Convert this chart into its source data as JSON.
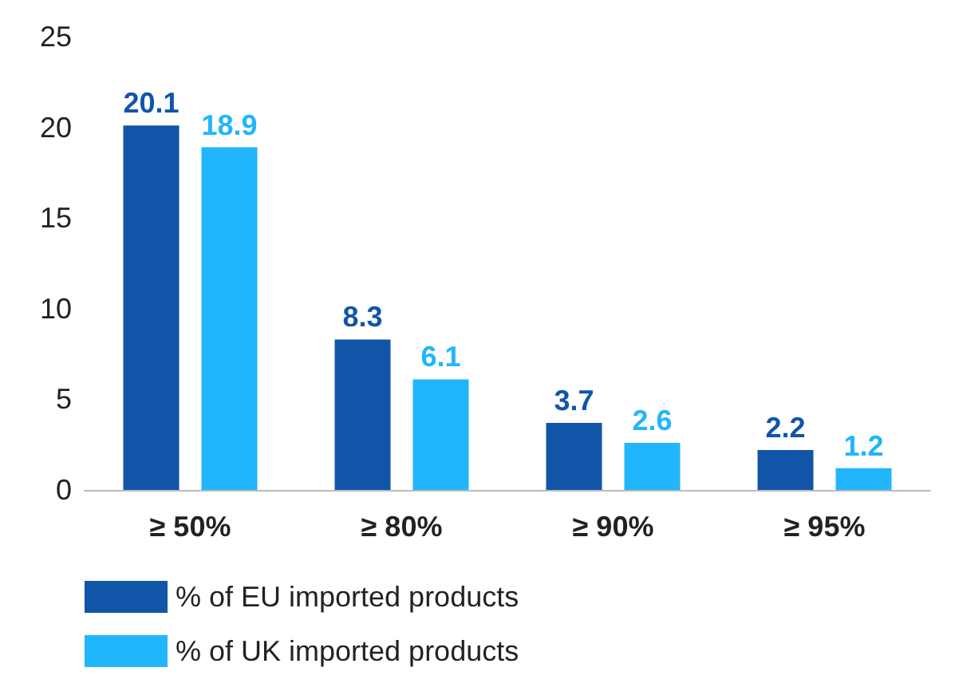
{
  "chart_data": {
    "type": "bar",
    "categories": [
      "≥ 50%",
      "≥ 80%",
      "≥ 90%",
      "≥ 95%"
    ],
    "series": [
      {
        "name": "% of EU imported products",
        "color": "#1155a8",
        "values": [
          20.1,
          8.3,
          3.7,
          2.2
        ]
      },
      {
        "name": "% of UK imported products",
        "color": "#21b6fb",
        "values": [
          18.9,
          6.1,
          2.6,
          1.2
        ]
      }
    ],
    "ylim": [
      0,
      25
    ],
    "yticks": [
      0,
      5,
      10,
      15,
      20,
      25
    ],
    "grid": false,
    "legend": "bottom left",
    "data_labels": true
  }
}
